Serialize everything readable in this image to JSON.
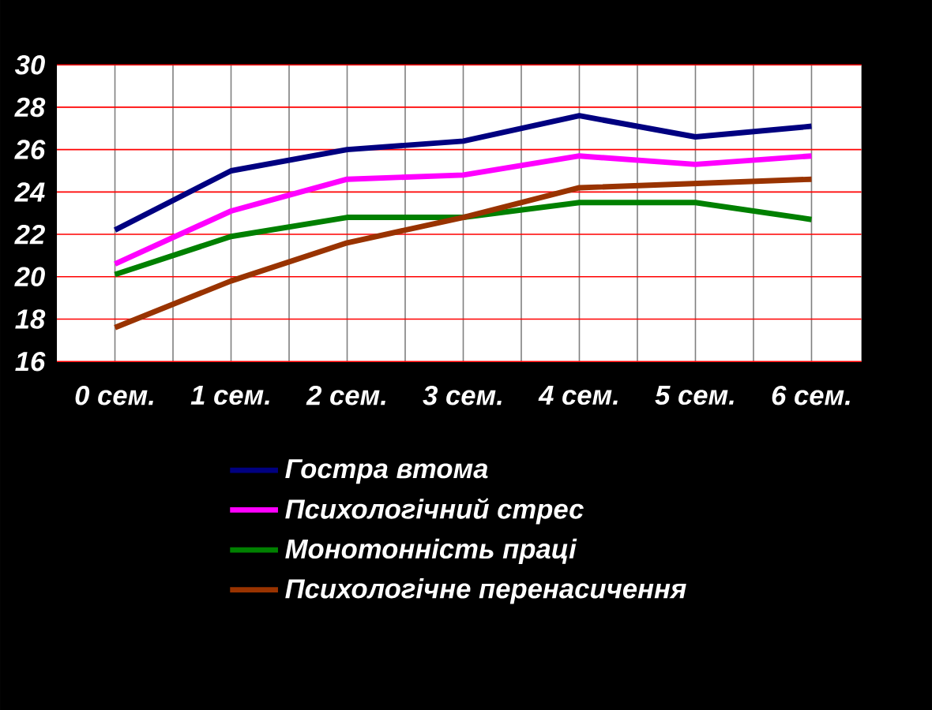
{
  "chart_data": {
    "type": "line",
    "categories": [
      "0 сем.",
      "1 сем.",
      "2 сем.",
      "3 сем.",
      "4 сем.",
      "5 сем.",
      "6 сем."
    ],
    "series": [
      {
        "name": "Гостра втома",
        "color": "#000080",
        "values": [
          22.2,
          25.0,
          26.0,
          26.4,
          27.6,
          26.6,
          27.1
        ]
      },
      {
        "name": "Психологічний стрес",
        "color": "#ff00ff",
        "values": [
          20.6,
          23.1,
          24.6,
          24.8,
          25.7,
          25.3,
          25.7
        ]
      },
      {
        "name": "Монотонність праці",
        "color": "#008000",
        "values": [
          20.1,
          21.9,
          22.8,
          22.8,
          23.5,
          23.5,
          22.7
        ]
      },
      {
        "name": "Психологічне перенасичення",
        "color": "#993300",
        "values": [
          17.6,
          19.8,
          21.6,
          22.8,
          24.2,
          24.4,
          24.6
        ]
      }
    ],
    "ylim": [
      16,
      30
    ],
    "yticks": [
      16,
      18,
      20,
      22,
      24,
      26,
      28,
      30
    ],
    "grid": true,
    "legend": "bottom",
    "marker": "none",
    "line_style": "solid"
  }
}
